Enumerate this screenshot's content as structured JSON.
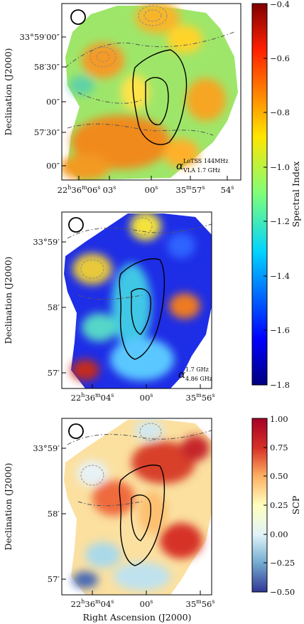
{
  "chart_data": [
    {
      "type": "heatmap",
      "panel": "top",
      "ylabel": "Declination (J2000)",
      "y_tick_labels": [
        "33°59′00″",
        "58′30″",
        "00″",
        "57′30″",
        "00″"
      ],
      "x_tick_labels": [
        "22h36m06s",
        "03s",
        "00s",
        "35m57s",
        "54s"
      ],
      "annotation": "α LoTSS 144MHz / VLA 1.7 GHz",
      "colorbar": {
        "label": "Spectral Index",
        "range": [
          -1.8,
          -0.4
        ],
        "ticks": [
          "−0.4",
          "−0.6",
          "−0.8",
          "−1.0",
          "−1.2",
          "−1.4",
          "−1.6",
          "−1.8"
        ]
      }
    },
    {
      "type": "heatmap",
      "panel": "middle",
      "ylabel": "Declination (J2000)",
      "y_tick_labels": [
        "33°59′",
        "58′",
        "57′"
      ],
      "x_tick_labels": [
        "22h36m04s",
        "00s",
        "35m56s"
      ],
      "annotation": "α 1.7 GHz / 4.86 GHz"
    },
    {
      "type": "heatmap",
      "panel": "bottom",
      "ylabel": "Declination (J2000)",
      "xlabel": "Right Ascension (J2000)",
      "y_tick_labels": [
        "33°59′",
        "58′",
        "57′"
      ],
      "x_tick_labels": [
        "22h36m04s",
        "00s",
        "35m56s"
      ],
      "colorbar": {
        "label": "SCP",
        "range": [
          -0.5,
          1.0
        ],
        "ticks": [
          "1.00",
          "0.75",
          "0.50",
          "0.25",
          "0.00",
          "−0.25",
          "−0.50"
        ]
      }
    }
  ],
  "text": {
    "ylabel": "Declination (J2000)",
    "xlabel": "Right Ascension (J2000)",
    "p1_y": [
      "33°59′00″",
      "58′30″",
      "00″",
      "57′30″",
      "00″"
    ],
    "p1_x": {
      "main": "22",
      "h": "h",
      "m36": "36",
      "m": "m",
      "s06": "06",
      "s": "s",
      "x2": "03",
      "x3": "00",
      "x4a": "35",
      "x4b": "57",
      "x5": "54"
    },
    "p1_annot_main": "α",
    "p1_annot_sup": "LoTSS 144MHz",
    "p1_annot_sub": "VLA 1.7 GHz",
    "p2_y": [
      "33°59′",
      "58′",
      "57′"
    ],
    "p2_annot_main": "α",
    "p2_annot_sup": "1.7 GHz",
    "p2_annot_sub": "4.86 GHz",
    "p3_y": [
      "33°59′",
      "58′",
      "57′"
    ],
    "cb1_label": "Spectral Index",
    "cb1_ticks": [
      "−0.4",
      "−0.6",
      "−0.8",
      "−1.0",
      "−1.2",
      "−1.4",
      "−1.6",
      "−1.8"
    ],
    "cb2_label": "SCP",
    "cb2_ticks": [
      "1.00",
      "0.75",
      "0.50",
      "0.25",
      "0.00",
      "−0.25",
      "−0.50"
    ]
  },
  "colors": {
    "jet_low": "#00007f",
    "jet_high": "#7f0000",
    "rdylbu_low": "#313695",
    "rdylbu_high": "#a50026"
  }
}
